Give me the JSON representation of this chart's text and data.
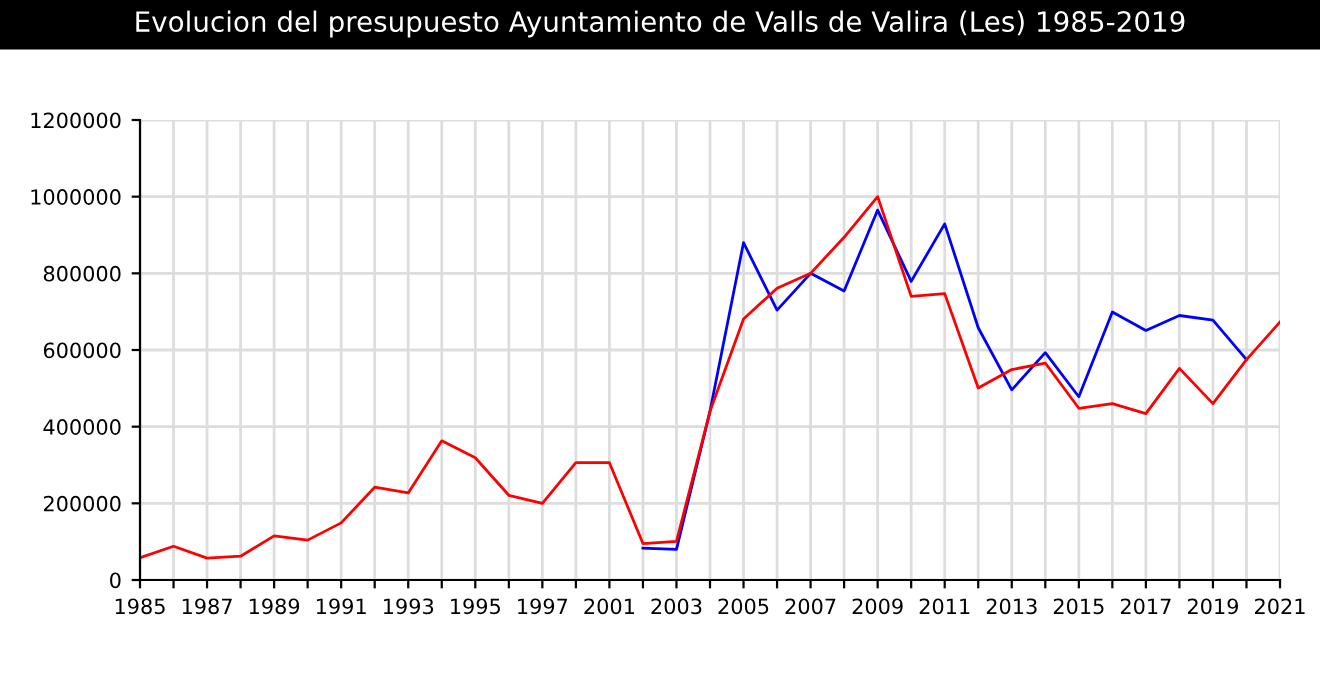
{
  "chart_data": {
    "type": "line",
    "title": "Evolucion del presupuesto Ayuntamiento de Valls de Valira (Les) 1985-2019",
    "categories": [
      "1985",
      null,
      "1987",
      null,
      "1989",
      null,
      "1991",
      null,
      "1993",
      null,
      "1995",
      null,
      "1997",
      null,
      "2001",
      null,
      "2003",
      null,
      "2005",
      null,
      "2007",
      null,
      "2009",
      null,
      "2011",
      null,
      "2013",
      null,
      "2015",
      null,
      "2017",
      null,
      "2019",
      null,
      "2021"
    ],
    "series": [
      {
        "color": "#0000ff",
        "values": [
          null,
          null,
          null,
          null,
          null,
          null,
          null,
          null,
          null,
          null,
          null,
          null,
          null,
          null,
          null,
          83000,
          80000,
          440000,
          880000,
          704000,
          800000,
          754000,
          965000,
          779000,
          929000,
          658000,
          496000,
          593000,
          478000,
          699000,
          651000,
          690000,
          678000,
          575000,
          null
        ]
      },
      {
        "color": "#ff0000",
        "values": [
          58000,
          88000,
          57000,
          62000,
          115000,
          104000,
          149000,
          242000,
          227000,
          363000,
          319000,
          221000,
          200000,
          306000,
          306000,
          95000,
          101000,
          440000,
          681000,
          761000,
          800000,
          894000,
          1000000,
          740000,
          747000,
          501000,
          549000,
          566000,
          448000,
          460000,
          434000,
          552000,
          460000,
          575000,
          673000
        ]
      }
    ],
    "ylim": [
      0,
      1200000
    ],
    "yticks": [
      0,
      200000,
      400000,
      600000,
      800000,
      1000000,
      1200000
    ],
    "grid": true,
    "legend": false
  }
}
